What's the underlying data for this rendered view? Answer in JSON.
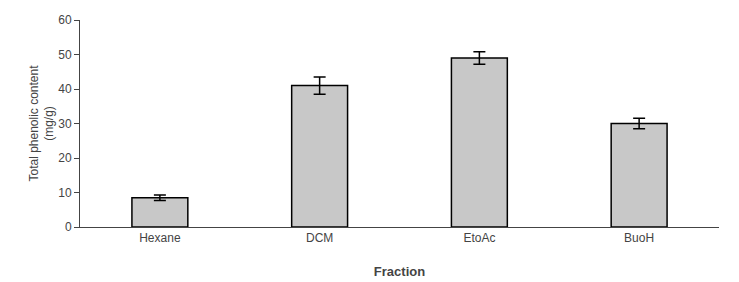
{
  "chart_data": {
    "type": "bar",
    "xlabel": "Fraction",
    "ylabel": "Total phenolic content\n(mg/g)",
    "categories": [
      "Hexane",
      "DCM",
      "EtoAc",
      "BuoH"
    ],
    "values": [
      8.5,
      41.0,
      49.0,
      30.0
    ],
    "errors": [
      0.8,
      2.5,
      1.8,
      1.5
    ],
    "color": "#c8c8c8",
    "ylim": [
      0,
      60
    ],
    "yticks": [
      0,
      10,
      20,
      30,
      40,
      50,
      60
    ],
    "grid": false
  }
}
